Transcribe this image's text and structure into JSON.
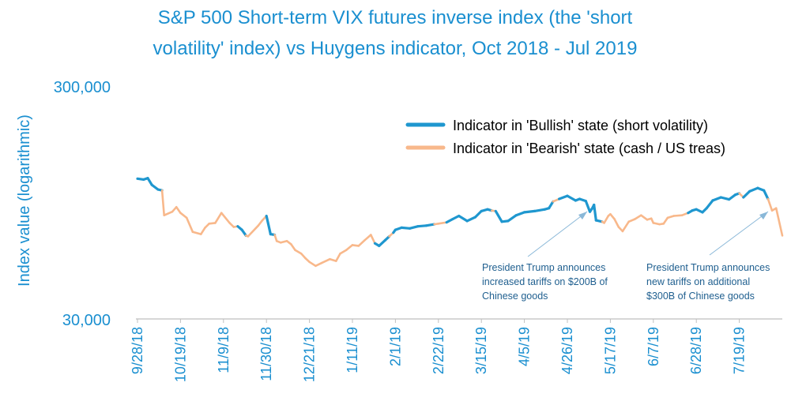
{
  "chart_data": {
    "type": "line",
    "title_lines": [
      "S&P 500 Short-term VIX futures inverse index (the 'short",
      "volatility' index) vs Huygens indicator, Oct 2018 - Jul 2019"
    ],
    "xlabel": "",
    "ylabel": "Index value (logarithmic)",
    "y_scale": "log",
    "ylim": [
      30000,
      300000
    ],
    "y_ticks": [
      {
        "value": 30000,
        "label": "30,000"
      },
      {
        "value": 300000,
        "label": "300,000"
      }
    ],
    "x_tick_labels": [
      "9/28/18",
      "10/19/18",
      "11/9/18",
      "11/30/18",
      "12/21/18",
      "1/11/19",
      "2/1/19",
      "2/22/19",
      "3/15/19",
      "4/5/19",
      "4/26/19",
      "5/17/19",
      "6/7/19",
      "6/28/19",
      "7/19/19"
    ],
    "x_range": [
      "9/28/18",
      "8/9/19"
    ],
    "grid": false,
    "legend_position": "top-right",
    "colors": {
      "bullish": "#1f97cf",
      "bearish": "#f8b88b",
      "text": "#1a8fd0",
      "annotation": "#1f5f8f",
      "arrow": "#8ab8d8"
    },
    "series": [
      {
        "name": "Indicator in 'Bullish' state (short volatility)",
        "color": "#1f97cf"
      },
      {
        "name": "Indicator in 'Bearish' state (cash / US treas)",
        "color": "#f8b88b"
      }
    ],
    "points": [
      {
        "x": "9/28/18",
        "y": 119000,
        "state": "bullish"
      },
      {
        "x": "10/1/18",
        "y": 118000,
        "state": "bullish"
      },
      {
        "x": "10/3/18",
        "y": 119500,
        "state": "bullish"
      },
      {
        "x": "10/5/18",
        "y": 112000,
        "state": "bullish"
      },
      {
        "x": "10/8/18",
        "y": 107000,
        "state": "bullish"
      },
      {
        "x": "10/10/18",
        "y": 106000,
        "state": "bullish"
      },
      {
        "x": "10/11/18",
        "y": 83000,
        "state": "bearish"
      },
      {
        "x": "10/15/18",
        "y": 86000,
        "state": "bearish"
      },
      {
        "x": "10/17/18",
        "y": 90000,
        "state": "bearish"
      },
      {
        "x": "10/19/18",
        "y": 85000,
        "state": "bearish"
      },
      {
        "x": "10/22/18",
        "y": 81000,
        "state": "bearish"
      },
      {
        "x": "10/25/18",
        "y": 70500,
        "state": "bearish"
      },
      {
        "x": "10/29/18",
        "y": 69000,
        "state": "bearish"
      },
      {
        "x": "10/31/18",
        "y": 73500,
        "state": "bearish"
      },
      {
        "x": "11/2/18",
        "y": 76500,
        "state": "bearish"
      },
      {
        "x": "11/5/18",
        "y": 77000,
        "state": "bearish"
      },
      {
        "x": "11/8/18",
        "y": 85000,
        "state": "bearish"
      },
      {
        "x": "11/12/18",
        "y": 77000,
        "state": "bearish"
      },
      {
        "x": "11/14/18",
        "y": 74000,
        "state": "bearish"
      },
      {
        "x": "11/16/18",
        "y": 74500,
        "state": "bearish"
      },
      {
        "x": "11/18/18",
        "y": 72000,
        "state": "bullish"
      },
      {
        "x": "11/20/18",
        "y": 68000,
        "state": "bullish"
      },
      {
        "x": "11/21/18",
        "y": 67500,
        "state": "bearish"
      },
      {
        "x": "11/26/18",
        "y": 75000,
        "state": "bearish"
      },
      {
        "x": "11/28/18",
        "y": 79000,
        "state": "bearish"
      },
      {
        "x": "11/30/18",
        "y": 82500,
        "state": "bearish"
      },
      {
        "x": "12/2/18",
        "y": 69000,
        "state": "bullish"
      },
      {
        "x": "12/4/18",
        "y": 68500,
        "state": "bullish"
      },
      {
        "x": "12/5/18",
        "y": 64500,
        "state": "bearish"
      },
      {
        "x": "12/7/18",
        "y": 63500,
        "state": "bearish"
      },
      {
        "x": "12/10/18",
        "y": 64500,
        "state": "bearish"
      },
      {
        "x": "12/12/18",
        "y": 62500,
        "state": "bearish"
      },
      {
        "x": "12/14/18",
        "y": 59000,
        "state": "bearish"
      },
      {
        "x": "12/17/18",
        "y": 57000,
        "state": "bearish"
      },
      {
        "x": "12/19/18",
        "y": 54500,
        "state": "bearish"
      },
      {
        "x": "12/21/18",
        "y": 52500,
        "state": "bearish"
      },
      {
        "x": "12/24/18",
        "y": 50500,
        "state": "bearish"
      },
      {
        "x": "12/27/18",
        "y": 52000,
        "state": "bearish"
      },
      {
        "x": "12/31/18",
        "y": 54000,
        "state": "bearish"
      },
      {
        "x": "1/3/19",
        "y": 53000,
        "state": "bearish"
      },
      {
        "x": "1/5/19",
        "y": 57000,
        "state": "bearish"
      },
      {
        "x": "1/8/19",
        "y": 59000,
        "state": "bearish"
      },
      {
        "x": "1/11/19",
        "y": 62000,
        "state": "bearish"
      },
      {
        "x": "1/14/19",
        "y": 61500,
        "state": "bearish"
      },
      {
        "x": "1/17/19",
        "y": 65000,
        "state": "bearish"
      },
      {
        "x": "1/20/19",
        "y": 68500,
        "state": "bearish"
      },
      {
        "x": "1/22/19",
        "y": 63000,
        "state": "bearish"
      },
      {
        "x": "1/24/19",
        "y": 61500,
        "state": "bullish"
      },
      {
        "x": "1/27/19",
        "y": 65000,
        "state": "bullish"
      },
      {
        "x": "1/29/19",
        "y": 67500,
        "state": "bullish"
      },
      {
        "x": "1/31/19",
        "y": 70000,
        "state": "bearish"
      },
      {
        "x": "2/1/19",
        "y": 72000,
        "state": "bullish"
      },
      {
        "x": "2/4/19",
        "y": 73500,
        "state": "bullish"
      },
      {
        "x": "2/8/19",
        "y": 73000,
        "state": "bullish"
      },
      {
        "x": "2/12/19",
        "y": 74500,
        "state": "bullish"
      },
      {
        "x": "2/16/19",
        "y": 75000,
        "state": "bullish"
      },
      {
        "x": "2/20/19",
        "y": 76000,
        "state": "bullish"
      },
      {
        "x": "2/22/19",
        "y": 76500,
        "state": "bearish"
      },
      {
        "x": "2/26/19",
        "y": 77500,
        "state": "bearish"
      },
      {
        "x": "3/1/19",
        "y": 80000,
        "state": "bullish"
      },
      {
        "x": "3/4/19",
        "y": 82500,
        "state": "bullish"
      },
      {
        "x": "3/8/19",
        "y": 78500,
        "state": "bullish"
      },
      {
        "x": "3/12/19",
        "y": 81500,
        "state": "bullish"
      },
      {
        "x": "3/15/19",
        "y": 86500,
        "state": "bullish"
      },
      {
        "x": "3/18/19",
        "y": 88000,
        "state": "bullish"
      },
      {
        "x": "3/20/19",
        "y": 87000,
        "state": "bullish"
      },
      {
        "x": "3/22/19",
        "y": 86500,
        "state": "bearish"
      },
      {
        "x": "3/25/19",
        "y": 78000,
        "state": "bullish"
      },
      {
        "x": "3/28/19",
        "y": 78500,
        "state": "bullish"
      },
      {
        "x": "4/1/19",
        "y": 83000,
        "state": "bullish"
      },
      {
        "x": "4/5/19",
        "y": 85500,
        "state": "bullish"
      },
      {
        "x": "4/10/19",
        "y": 86500,
        "state": "bullish"
      },
      {
        "x": "4/15/19",
        "y": 88000,
        "state": "bullish"
      },
      {
        "x": "4/17/19",
        "y": 89000,
        "state": "bullish"
      },
      {
        "x": "4/19/19",
        "y": 95000,
        "state": "bullish"
      },
      {
        "x": "4/22/19",
        "y": 97500,
        "state": "bearish"
      },
      {
        "x": "4/26/19",
        "y": 100500,
        "state": "bullish"
      },
      {
        "x": "4/30/19",
        "y": 96000,
        "state": "bullish"
      },
      {
        "x": "5/2/19",
        "y": 97500,
        "state": "bullish"
      },
      {
        "x": "5/5/19",
        "y": 95500,
        "state": "bullish"
      },
      {
        "x": "5/7/19",
        "y": 86000,
        "state": "bullish"
      },
      {
        "x": "5/8/19",
        "y": 88500,
        "state": "bullish"
      },
      {
        "x": "5/9/19",
        "y": 92000,
        "state": "bullish"
      },
      {
        "x": "5/10/19",
        "y": 79000,
        "state": "bullish"
      },
      {
        "x": "5/13/19",
        "y": 78000,
        "state": "bullish"
      },
      {
        "x": "5/14/19",
        "y": 77000,
        "state": "bearish"
      },
      {
        "x": "5/16/19",
        "y": 82500,
        "state": "bearish"
      },
      {
        "x": "5/17/19",
        "y": 84000,
        "state": "bearish"
      },
      {
        "x": "5/19/19",
        "y": 80000,
        "state": "bearish"
      },
      {
        "x": "5/21/19",
        "y": 74000,
        "state": "bearish"
      },
      {
        "x": "5/23/19",
        "y": 71000,
        "state": "bearish"
      },
      {
        "x": "5/26/19",
        "y": 78000,
        "state": "bearish"
      },
      {
        "x": "5/29/19",
        "y": 80000,
        "state": "bearish"
      },
      {
        "x": "6/1/19",
        "y": 83000,
        "state": "bearish"
      },
      {
        "x": "6/4/19",
        "y": 79500,
        "state": "bearish"
      },
      {
        "x": "6/6/19",
        "y": 80500,
        "state": "bearish"
      },
      {
        "x": "6/7/19",
        "y": 77000,
        "state": "bearish"
      },
      {
        "x": "6/10/19",
        "y": 76000,
        "state": "bearish"
      },
      {
        "x": "6/12/19",
        "y": 76500,
        "state": "bearish"
      },
      {
        "x": "6/14/19",
        "y": 81000,
        "state": "bearish"
      },
      {
        "x": "6/17/19",
        "y": 82500,
        "state": "bearish"
      },
      {
        "x": "6/21/19",
        "y": 83000,
        "state": "bearish"
      },
      {
        "x": "6/24/19",
        "y": 85000,
        "state": "bearish"
      },
      {
        "x": "6/26/19",
        "y": 87000,
        "state": "bullish"
      },
      {
        "x": "6/28/19",
        "y": 88000,
        "state": "bullish"
      },
      {
        "x": "7/1/19",
        "y": 85500,
        "state": "bullish"
      },
      {
        "x": "7/3/19",
        "y": 89000,
        "state": "bullish"
      },
      {
        "x": "7/6/19",
        "y": 96000,
        "state": "bullish"
      },
      {
        "x": "7/10/19",
        "y": 99000,
        "state": "bullish"
      },
      {
        "x": "7/14/19",
        "y": 97000,
        "state": "bullish"
      },
      {
        "x": "7/17/19",
        "y": 101500,
        "state": "bullish"
      },
      {
        "x": "7/19/19",
        "y": 103000,
        "state": "bullish"
      },
      {
        "x": "7/21/19",
        "y": 99000,
        "state": "bearish"
      },
      {
        "x": "7/24/19",
        "y": 105000,
        "state": "bullish"
      },
      {
        "x": "7/28/19",
        "y": 108500,
        "state": "bullish"
      },
      {
        "x": "7/31/19",
        "y": 106000,
        "state": "bullish"
      },
      {
        "x": "8/2/19",
        "y": 97500,
        "state": "bullish"
      },
      {
        "x": "8/4/19",
        "y": 87000,
        "state": "bearish"
      },
      {
        "x": "8/6/19",
        "y": 89000,
        "state": "bearish"
      },
      {
        "x": "8/9/19",
        "y": 68000,
        "state": "bearish"
      }
    ],
    "annotations": [
      {
        "lines": [
          "President Trump announces",
          "increased tariffs on $200B of",
          "Chinese goods"
        ],
        "points_to": "5/9/19"
      },
      {
        "lines": [
          "President Trump announces",
          "new tariffs on additional",
          "$300B of Chinese goods"
        ],
        "points_to": "8/1/19"
      }
    ]
  }
}
